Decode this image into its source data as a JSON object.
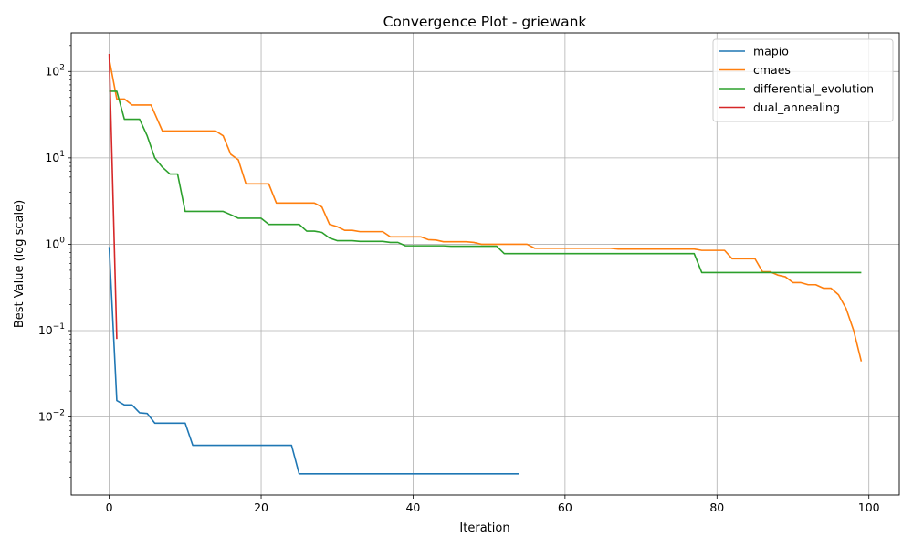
{
  "chart_data": {
    "type": "line",
    "title": "Convergence Plot - griewank",
    "xlabel": "Iteration",
    "ylabel": "Best Value (log scale)",
    "yscale": "log",
    "xlim": [
      -5,
      104
    ],
    "ylim": [
      0.00125,
      280
    ],
    "xticks": [
      0,
      20,
      40,
      60,
      80,
      100
    ],
    "xtick_labels": [
      "0",
      "20",
      "40",
      "60",
      "80",
      "100"
    ],
    "yticks": [
      0.01,
      0.1,
      1,
      10,
      100
    ],
    "ytick_labels": [
      {
        "base": "10",
        "exp": "−2"
      },
      {
        "base": "10",
        "exp": "−1"
      },
      {
        "base": "10",
        "exp": "0"
      },
      {
        "base": "10",
        "exp": "1"
      },
      {
        "base": "10",
        "exp": "2"
      }
    ],
    "grid": true,
    "legend_position": "top-right",
    "series": [
      {
        "name": "mapio",
        "color": "#1f77b4",
        "points": [
          [
            0,
            0.93
          ],
          [
            1,
            0.0155
          ],
          [
            2,
            0.0138
          ],
          [
            3,
            0.0138
          ],
          [
            4,
            0.0112
          ],
          [
            5,
            0.011
          ],
          [
            6,
            0.0085
          ],
          [
            10,
            0.0085
          ],
          [
            11,
            0.0047
          ],
          [
            24,
            0.0047
          ],
          [
            25,
            0.0022
          ],
          [
            54,
            0.0022
          ]
        ]
      },
      {
        "name": "cmaes",
        "color": "#ff7f0e",
        "points": [
          [
            0,
            140
          ],
          [
            1,
            48
          ],
          [
            2,
            48
          ],
          [
            3,
            41
          ],
          [
            5.5,
            41
          ],
          [
            7,
            20.5
          ],
          [
            14,
            20.5
          ],
          [
            15,
            18
          ],
          [
            16,
            11
          ],
          [
            17,
            9.5
          ],
          [
            18,
            5
          ],
          [
            21,
            5
          ],
          [
            22,
            3
          ],
          [
            27,
            3
          ],
          [
            28,
            2.7
          ],
          [
            29,
            1.7
          ],
          [
            30,
            1.6
          ],
          [
            31,
            1.45
          ],
          [
            32,
            1.45
          ],
          [
            33,
            1.4
          ],
          [
            36,
            1.4
          ],
          [
            37,
            1.22
          ],
          [
            41,
            1.22
          ],
          [
            42,
            1.13
          ],
          [
            43,
            1.12
          ],
          [
            44,
            1.07
          ],
          [
            47,
            1.07
          ],
          [
            48,
            1.05
          ],
          [
            49,
            1.0
          ],
          [
            55,
            1.0
          ],
          [
            56,
            0.9
          ],
          [
            66,
            0.9
          ],
          [
            67,
            0.88
          ],
          [
            77,
            0.88
          ],
          [
            78,
            0.85
          ],
          [
            81,
            0.85
          ],
          [
            82,
            0.68
          ],
          [
            85,
            0.68
          ],
          [
            86,
            0.48
          ],
          [
            87,
            0.48
          ],
          [
            88,
            0.44
          ],
          [
            89,
            0.42
          ],
          [
            90,
            0.36
          ],
          [
            91,
            0.36
          ],
          [
            92,
            0.34
          ],
          [
            93,
            0.34
          ],
          [
            94,
            0.31
          ],
          [
            95,
            0.31
          ],
          [
            96,
            0.26
          ],
          [
            97,
            0.18
          ],
          [
            98,
            0.1
          ],
          [
            99,
            0.044
          ]
        ]
      },
      {
        "name": "differential_evolution",
        "color": "#2ca02c",
        "points": [
          [
            0,
            59
          ],
          [
            1,
            59
          ],
          [
            2,
            28
          ],
          [
            4,
            28
          ],
          [
            5,
            18
          ],
          [
            6,
            10
          ],
          [
            7,
            7.8
          ],
          [
            8,
            6.5
          ],
          [
            9,
            6.5
          ],
          [
            10,
            2.4
          ],
          [
            15,
            2.4
          ],
          [
            16,
            2.2
          ],
          [
            17,
            2.0
          ],
          [
            20,
            2.0
          ],
          [
            21,
            1.7
          ],
          [
            25,
            1.7
          ],
          [
            26,
            1.42
          ],
          [
            27,
            1.42
          ],
          [
            28,
            1.37
          ],
          [
            29,
            1.18
          ],
          [
            30,
            1.1
          ],
          [
            32,
            1.1
          ],
          [
            33,
            1.08
          ],
          [
            36,
            1.08
          ],
          [
            37,
            1.05
          ],
          [
            38,
            1.05
          ],
          [
            39,
            0.96
          ],
          [
            44,
            0.96
          ],
          [
            45,
            0.95
          ],
          [
            51,
            0.95
          ],
          [
            52,
            0.78
          ],
          [
            77,
            0.78
          ],
          [
            78,
            0.47
          ],
          [
            99,
            0.47
          ]
        ]
      },
      {
        "name": "dual_annealing",
        "color": "#d62728",
        "points": [
          [
            0,
            160
          ],
          [
            1,
            0.08
          ]
        ]
      }
    ]
  }
}
